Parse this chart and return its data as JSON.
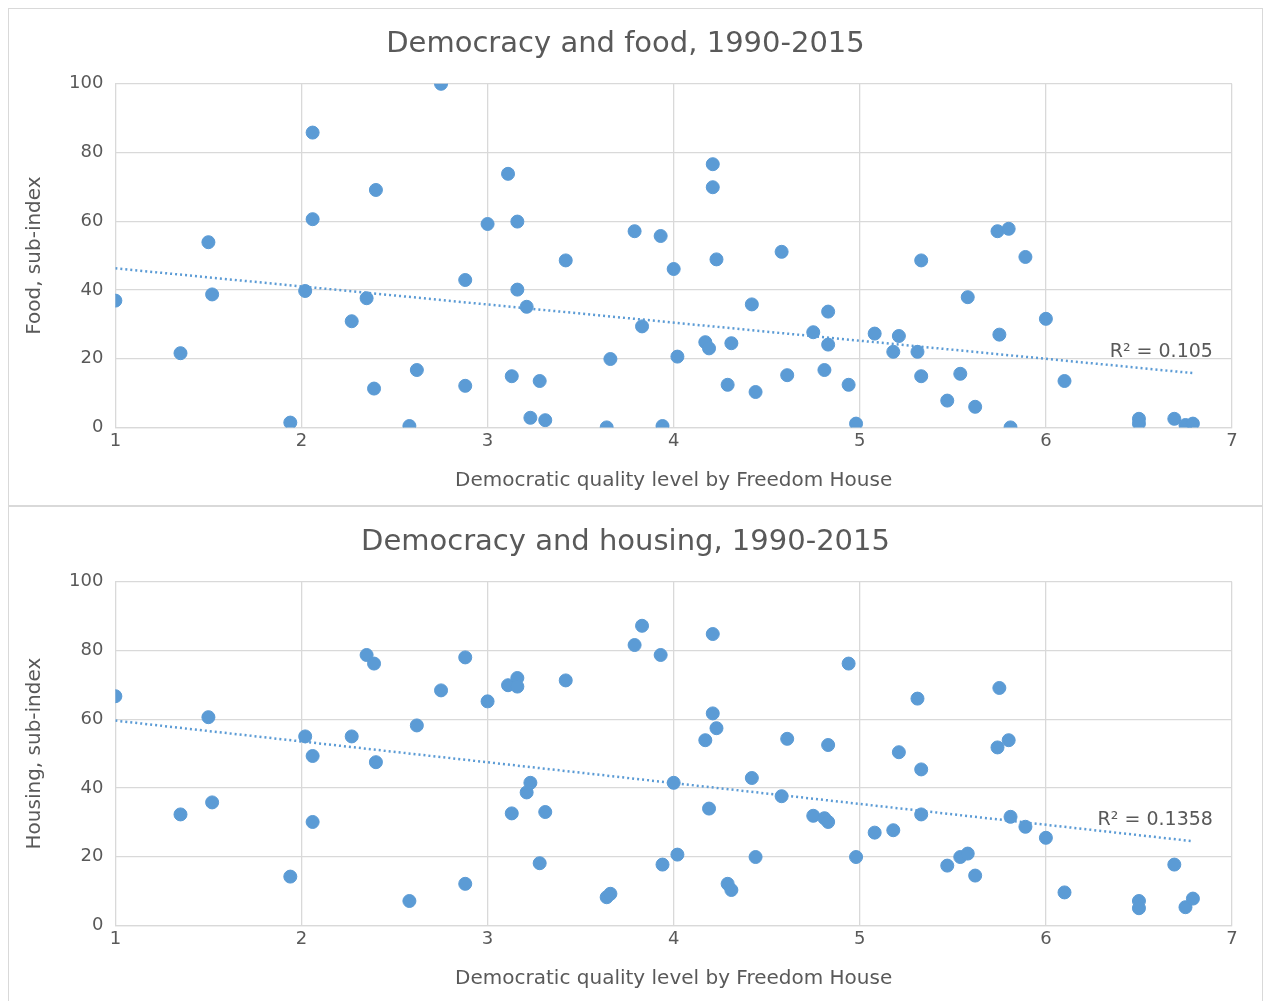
{
  "chart_data": [
    {
      "type": "scatter",
      "title": "Democracy and food, 1990-2015",
      "xlabel": "Democratic quality level by Freedom House",
      "ylabel": "Food, sub-index",
      "xlim": [
        1,
        7
      ],
      "xticks": [
        1,
        2,
        3,
        4,
        5,
        6,
        7
      ],
      "ylim": [
        0,
        100
      ],
      "yticks": [
        0,
        20,
        40,
        60,
        80,
        100
      ],
      "grid": true,
      "legend": false,
      "series": [
        {
          "color": "#5b9bd5",
          "marker": "circle",
          "x": [
            1.0,
            1.35,
            1.5,
            1.52,
            1.94,
            2.02,
            2.06,
            2.06,
            2.27,
            2.35,
            2.39,
            2.4,
            2.58,
            2.62,
            2.75,
            2.88,
            2.88,
            3.0,
            3.11,
            3.13,
            3.16,
            3.16,
            3.21,
            3.23,
            3.28,
            3.31,
            3.42,
            3.64,
            3.66,
            3.79,
            3.83,
            3.93,
            3.94,
            4.0,
            4.02,
            4.17,
            4.19,
            4.21,
            4.21,
            4.23,
            4.29,
            4.31,
            4.42,
            4.44,
            4.58,
            4.61,
            4.75,
            4.81,
            4.83,
            4.83,
            4.94,
            4.98,
            5.08,
            5.18,
            5.21,
            5.31,
            5.33,
            5.33,
            5.47,
            5.54,
            5.58,
            5.62,
            5.74,
            5.75,
            5.8,
            5.81,
            5.89,
            6.0,
            6.1,
            6.5,
            6.5,
            6.69,
            6.75,
            6.79
          ],
          "values": [
            36.9,
            21.6,
            53.9,
            38.7,
            1.4,
            39.7,
            85.8,
            60.6,
            30.9,
            37.6,
            11.3,
            69.1,
            0.4,
            16.7,
            100,
            42.9,
            12.1,
            59.2,
            73.8,
            14.9,
            59.9,
            40.1,
            35.1,
            2.8,
            13.5,
            2.1,
            48.6,
            0,
            19.9,
            57.1,
            29.4,
            55.7,
            0.4,
            46.1,
            20.6,
            24.8,
            23.0,
            76.6,
            69.9,
            48.9,
            12.4,
            24.5,
            35.8,
            10.3,
            51.1,
            15.2,
            27.7,
            16.7,
            33.7,
            24.1,
            12.4,
            1.1,
            27.3,
            22.0,
            26.6,
            22.0,
            48.6,
            14.9,
            7.8,
            15.6,
            37.9,
            6.0,
            57.1,
            27.0,
            57.8,
            0,
            49.6,
            31.6,
            13.5,
            2.5,
            1.1,
            2.5,
            0.7,
            1.1
          ]
        },
        {
          "type": "line",
          "color": "#5b9bd5",
          "marker": "none",
          "line_style": "dotted",
          "x": [
            1,
            6.79
          ],
          "values": [
            46.3,
            15.8
          ]
        }
      ],
      "annotations": [
        "R² = 0.105"
      ]
    },
    {
      "type": "scatter",
      "title": "Democracy and housing, 1990-2015",
      "xlabel": "Democratic quality level by Freedom House",
      "ylabel": "Housing, sub-index",
      "xlim": [
        1,
        7
      ],
      "xticks": [
        1,
        2,
        3,
        4,
        5,
        6,
        7
      ],
      "ylim": [
        0,
        100
      ],
      "yticks": [
        0,
        20,
        40,
        60,
        80,
        100
      ],
      "grid": true,
      "legend": false,
      "series": [
        {
          "color": "#5b9bd5",
          "marker": "circle",
          "x": [
            1.0,
            1.35,
            1.5,
            1.52,
            1.94,
            2.02,
            2.06,
            2.06,
            2.27,
            2.35,
            2.39,
            2.4,
            2.58,
            2.62,
            2.75,
            2.88,
            2.88,
            3.0,
            3.11,
            3.13,
            3.16,
            3.16,
            3.21,
            3.23,
            3.28,
            3.31,
            3.42,
            3.64,
            3.66,
            3.79,
            3.83,
            3.93,
            3.94,
            4.0,
            4.02,
            4.17,
            4.19,
            4.21,
            4.21,
            4.23,
            4.29,
            4.31,
            4.42,
            4.44,
            4.58,
            4.61,
            4.75,
            4.81,
            4.83,
            4.83,
            4.94,
            4.98,
            5.08,
            5.18,
            5.21,
            5.31,
            5.33,
            5.33,
            5.47,
            5.54,
            5.58,
            5.62,
            5.74,
            5.75,
            5.8,
            5.81,
            5.89,
            6.0,
            6.1,
            6.5,
            6.5,
            6.69,
            6.75,
            6.79
          ],
          "values": [
            66.7,
            32.3,
            60.6,
            35.8,
            14.2,
            55.0,
            49.3,
            30.1,
            55.0,
            78.7,
            76.2,
            47.5,
            7.1,
            58.2,
            68.4,
            78.0,
            12.1,
            65.2,
            69.9,
            32.6,
            72.0,
            69.5,
            38.7,
            41.5,
            18.1,
            33.0,
            71.3,
            8.2,
            9.2,
            81.6,
            87.2,
            78.7,
            17.7,
            41.5,
            20.6,
            53.9,
            34.0,
            84.8,
            61.7,
            57.4,
            12.1,
            10.3,
            42.9,
            19.9,
            37.6,
            54.3,
            31.9,
            31.2,
            52.5,
            30.1,
            76.2,
            19.9,
            27.0,
            27.7,
            50.4,
            66.0,
            45.4,
            32.3,
            17.4,
            19.9,
            20.9,
            14.5,
            51.8,
            69.1,
            53.9,
            31.6,
            28.7,
            25.5,
            9.6,
            7.1,
            5.0,
            17.7,
            5.3,
            7.8
          ]
        },
        {
          "type": "line",
          "color": "#5b9bd5",
          "marker": "none",
          "line_style": "dotted",
          "x": [
            1,
            6.79
          ],
          "values": [
            59.6,
            24.5
          ]
        }
      ],
      "annotations": [
        "R² = 0.1358"
      ]
    }
  ]
}
